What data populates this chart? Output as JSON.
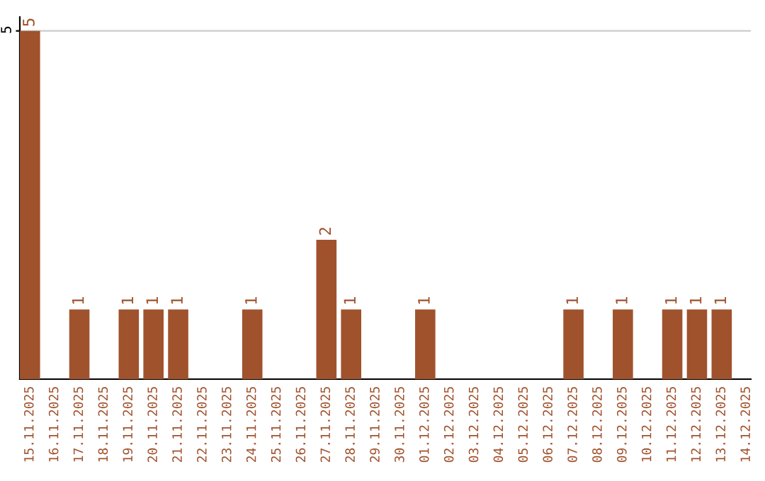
{
  "chart_data": {
    "type": "bar",
    "categories": [
      "15.11.2025",
      "16.11.2025",
      "17.11.2025",
      "18.11.2025",
      "19.11.2025",
      "20.11.2025",
      "21.11.2025",
      "22.11.2025",
      "23.11.2025",
      "24.11.2025",
      "25.11.2025",
      "26.11.2025",
      "27.11.2025",
      "28.11.2025",
      "29.11.2025",
      "30.11.2025",
      "01.12.2025",
      "02.12.2025",
      "03.12.2025",
      "04.12.2025",
      "05.12.2025",
      "06.12.2025",
      "07.12.2025",
      "08.12.2025",
      "09.12.2025",
      "10.12.2025",
      "11.12.2025",
      "12.12.2025",
      "13.12.2025",
      "14.12.2025"
    ],
    "values": [
      5,
      0,
      1,
      0,
      1,
      1,
      1,
      0,
      0,
      1,
      0,
      0,
      2,
      1,
      0,
      0,
      1,
      0,
      0,
      0,
      0,
      0,
      1,
      0,
      1,
      0,
      1,
      1,
      1,
      0
    ],
    "value_labels": [
      "5",
      null,
      "1",
      null,
      "1",
      "1",
      "1",
      null,
      null,
      "1",
      null,
      null,
      "2",
      "1",
      null,
      null,
      "1",
      null,
      null,
      null,
      null,
      null,
      "1",
      null,
      "1",
      null,
      "1",
      "1",
      "1",
      null
    ],
    "color": "#a0522d",
    "ylim": [
      0,
      5.2
    ],
    "yticks": [
      5
    ],
    "grid": "y"
  }
}
